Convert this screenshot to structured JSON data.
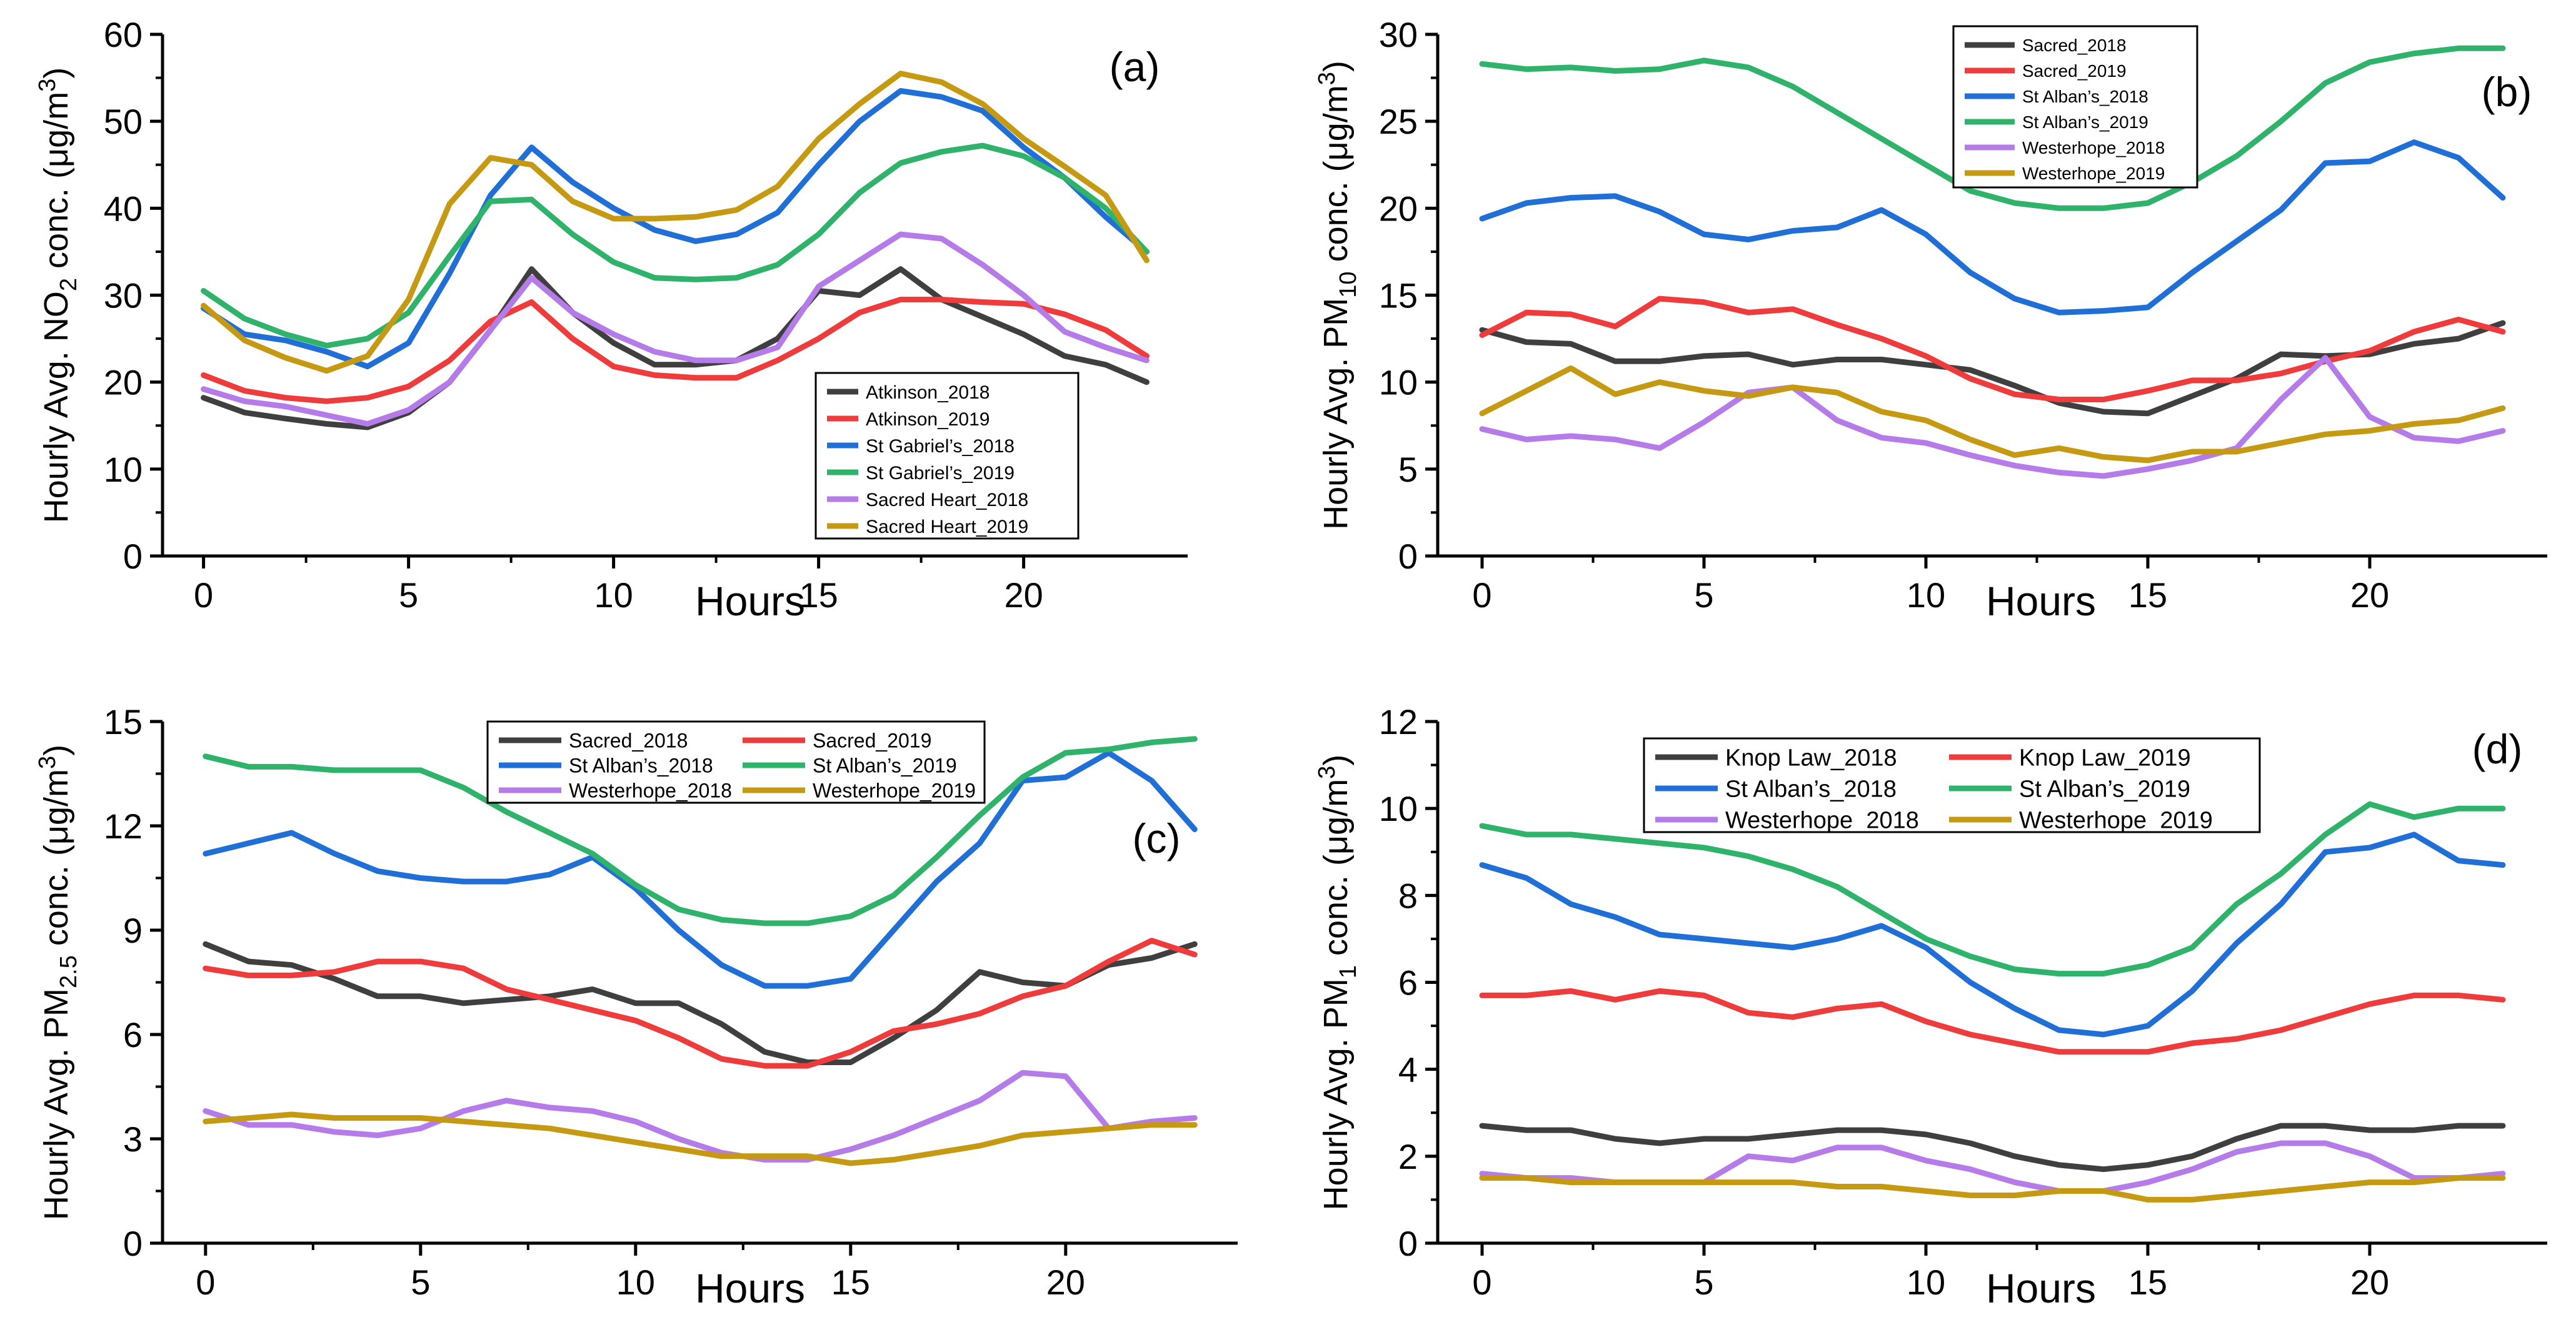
{
  "figure": {
    "x_title": "Hours"
  },
  "colors": {
    "axis": "#000000",
    "dark_gray": "#3f3f3f",
    "red": "#ee3b3b",
    "blue": "#1f6fd6",
    "green": "#2fb36a",
    "purple": "#b57be8",
    "gold": "#c59a12"
  },
  "chart_data": [
    {
      "panel": "(a)",
      "type": "line",
      "ylabel_pre": "Hourly Avg. NO",
      "ylabel_sub": "2",
      "ylabel_post": " conc. (μg/m",
      "ylabel_sup": "3",
      "ylabel_end": ")",
      "xlabel": "Hours",
      "xlim": [
        -1,
        24
      ],
      "ylim": [
        0,
        60
      ],
      "xticks": [
        0,
        5,
        10,
        15,
        20
      ],
      "yticks": [
        0,
        10,
        20,
        30,
        40,
        50,
        60
      ],
      "legend_position": "bottom-right",
      "x": [
        0,
        1,
        2,
        3,
        4,
        5,
        6,
        7,
        8,
        9,
        10,
        11,
        12,
        13,
        14,
        15,
        16,
        17,
        18,
        19,
        20,
        21,
        22,
        23
      ],
      "series": [
        {
          "name": "Atkinson_2018",
          "color": "dark_gray",
          "values": [
            18.2,
            16.5,
            15.8,
            15.2,
            14.8,
            16.5,
            20.0,
            26.0,
            33.0,
            28.0,
            24.5,
            22.0,
            22.0,
            22.5,
            25.0,
            30.5,
            30.0,
            33.0,
            29.5,
            27.5,
            25.5,
            23.0,
            22.0,
            20.0
          ]
        },
        {
          "name": "Atkinson_2019",
          "color": "red",
          "values": [
            20.8,
            19.0,
            18.2,
            17.8,
            18.2,
            19.5,
            22.5,
            27.0,
            29.2,
            25.0,
            21.8,
            20.8,
            20.5,
            20.5,
            22.5,
            25.0,
            28.0,
            29.5,
            29.5,
            29.2,
            29.0,
            27.8,
            26.0,
            23.0
          ]
        },
        {
          "name": "St Gabriel’s_2018",
          "color": "blue",
          "values": [
            28.5,
            25.5,
            24.8,
            23.5,
            21.8,
            24.5,
            32.5,
            41.5,
            47.0,
            43.0,
            40.0,
            37.5,
            36.2,
            37.0,
            39.5,
            45.0,
            50.0,
            53.5,
            52.8,
            51.2,
            47.0,
            43.5,
            39.0,
            35.0
          ]
        },
        {
          "name": "St Gabriel’s_2019",
          "color": "green",
          "values": [
            30.5,
            27.3,
            25.5,
            24.2,
            25.0,
            28.0,
            34.5,
            40.8,
            41.0,
            37.0,
            33.8,
            32.0,
            31.8,
            32.0,
            33.5,
            37.0,
            41.8,
            45.2,
            46.5,
            47.2,
            46.0,
            43.5,
            40.0,
            35.0
          ]
        },
        {
          "name": "Sacred Heart_2018",
          "color": "purple",
          "values": [
            19.2,
            17.8,
            17.2,
            16.2,
            15.2,
            16.8,
            20.0,
            26.0,
            32.0,
            28.0,
            25.5,
            23.5,
            22.5,
            22.5,
            24.0,
            31.0,
            34.0,
            37.0,
            36.5,
            33.5,
            30.0,
            25.8,
            24.0,
            22.5
          ]
        },
        {
          "name": "Sacred Heart_2019",
          "color": "gold",
          "values": [
            28.8,
            24.8,
            22.8,
            21.3,
            23.0,
            29.5,
            40.5,
            45.8,
            45.0,
            40.8,
            38.8,
            38.8,
            39.0,
            39.8,
            42.5,
            48.0,
            52.0,
            55.5,
            54.5,
            52.0,
            48.0,
            44.8,
            41.5,
            34.0
          ]
        }
      ]
    },
    {
      "panel": "(b)",
      "type": "line",
      "ylabel_pre": "Hourly Avg. PM",
      "ylabel_sub": "10",
      "ylabel_post": " conc. (μg/m",
      "ylabel_sup": "3",
      "ylabel_end": ")",
      "xlabel": "Hours",
      "xlim": [
        -1,
        24
      ],
      "ylim": [
        0,
        30
      ],
      "xticks": [
        0,
        5,
        10,
        15,
        20
      ],
      "yticks": [
        0,
        5,
        10,
        15,
        20,
        25,
        30
      ],
      "legend_position": "top-center",
      "x": [
        0,
        1,
        2,
        3,
        4,
        5,
        6,
        7,
        8,
        9,
        10,
        11,
        12,
        13,
        14,
        15,
        16,
        17,
        18,
        19,
        20,
        21,
        22,
        23
      ],
      "series": [
        {
          "name": "Sacred_2018",
          "color": "dark_gray",
          "values": [
            13.0,
            12.3,
            12.2,
            11.2,
            11.2,
            11.5,
            11.6,
            11.0,
            11.3,
            11.3,
            11.0,
            10.7,
            9.8,
            8.8,
            8.3,
            8.2,
            9.2,
            10.2,
            11.6,
            11.5,
            11.6,
            12.2,
            12.5,
            13.4
          ]
        },
        {
          "name": "Sacred_2019",
          "color": "red",
          "values": [
            12.7,
            14.0,
            13.9,
            13.2,
            14.8,
            14.6,
            14.0,
            14.2,
            13.3,
            12.5,
            11.5,
            10.2,
            9.3,
            9.0,
            9.0,
            9.5,
            10.1,
            10.1,
            10.5,
            11.2,
            11.8,
            12.9,
            13.6,
            12.9
          ]
        },
        {
          "name": "St Alban’s_2018",
          "color": "blue",
          "values": [
            19.4,
            20.3,
            20.6,
            20.7,
            19.8,
            18.5,
            18.2,
            18.7,
            18.9,
            19.9,
            18.5,
            16.3,
            14.8,
            14.0,
            14.1,
            14.3,
            16.3,
            18.1,
            19.9,
            22.6,
            22.7,
            23.8,
            22.9,
            20.6
          ]
        },
        {
          "name": "St Alban’s_2019",
          "color": "green",
          "values": [
            28.3,
            28.0,
            28.1,
            27.9,
            28.0,
            28.5,
            28.1,
            27.0,
            25.5,
            24.0,
            22.5,
            21.0,
            20.3,
            20.0,
            20.0,
            20.3,
            21.5,
            23.0,
            25.0,
            27.2,
            28.4,
            28.9,
            29.2,
            29.2
          ]
        },
        {
          "name": "Westerhope_2018",
          "color": "purple",
          "values": [
            7.3,
            6.7,
            6.9,
            6.7,
            6.2,
            7.7,
            9.4,
            9.7,
            7.8,
            6.8,
            6.5,
            5.8,
            5.2,
            4.8,
            4.6,
            5.0,
            5.5,
            6.2,
            9.0,
            11.4,
            8.0,
            6.8,
            6.6,
            7.2
          ]
        },
        {
          "name": "Westerhope_2019",
          "color": "gold",
          "values": [
            8.2,
            9.5,
            10.8,
            9.3,
            10.0,
            9.5,
            9.2,
            9.7,
            9.4,
            8.3,
            7.8,
            6.7,
            5.8,
            6.2,
            5.7,
            5.5,
            6.0,
            6.0,
            6.5,
            7.0,
            7.2,
            7.6,
            7.8,
            8.5
          ]
        }
      ]
    },
    {
      "panel": "(c)",
      "type": "line",
      "ylabel_pre": "Hourly Avg. PM",
      "ylabel_sub": "2.5",
      "ylabel_post": " conc. (μg/m",
      "ylabel_sup": "3",
      "ylabel_end": ")",
      "xlabel": "Hours",
      "xlim": [
        -1,
        24
      ],
      "ylim": [
        0,
        15
      ],
      "xticks": [
        0,
        5,
        10,
        15,
        20
      ],
      "yticks": [
        0,
        3,
        6,
        9,
        12,
        15
      ],
      "legend_position": "top-center",
      "x": [
        0,
        1,
        2,
        3,
        4,
        5,
        6,
        7,
        8,
        9,
        10,
        11,
        12,
        13,
        14,
        15,
        16,
        17,
        18,
        19,
        20,
        21,
        22,
        23
      ],
      "series": [
        {
          "name": "Sacred_2018",
          "color": "dark_gray",
          "values": [
            8.6,
            8.1,
            8.0,
            7.6,
            7.1,
            7.1,
            6.9,
            7.0,
            7.1,
            7.3,
            6.9,
            6.9,
            6.3,
            5.5,
            5.2,
            5.2,
            5.9,
            6.7,
            7.8,
            7.5,
            7.4,
            8.0,
            8.2,
            8.6
          ]
        },
        {
          "name": "Sacred_2019",
          "color": "red",
          "values": [
            7.9,
            7.7,
            7.7,
            7.8,
            8.1,
            8.1,
            7.9,
            7.3,
            7.0,
            6.7,
            6.4,
            5.9,
            5.3,
            5.1,
            5.1,
            5.5,
            6.1,
            6.3,
            6.6,
            7.1,
            7.4,
            8.1,
            8.7,
            8.3
          ]
        },
        {
          "name": "St Alban’s_2018",
          "color": "blue",
          "values": [
            11.2,
            11.5,
            11.8,
            11.2,
            10.7,
            10.5,
            10.4,
            10.4,
            10.6,
            11.1,
            10.2,
            9.0,
            8.0,
            7.4,
            7.4,
            7.6,
            9.0,
            10.4,
            11.5,
            13.3,
            13.4,
            14.1,
            13.3,
            11.9
          ]
        },
        {
          "name": "St Alban’s_2019",
          "color": "green",
          "values": [
            14.0,
            13.7,
            13.7,
            13.6,
            13.6,
            13.6,
            13.1,
            12.4,
            11.8,
            11.2,
            10.3,
            9.6,
            9.3,
            9.2,
            9.2,
            9.4,
            10.0,
            11.1,
            12.3,
            13.4,
            14.1,
            14.2,
            14.4,
            14.5
          ]
        },
        {
          "name": "Westerhope_2018",
          "color": "purple",
          "values": [
            3.8,
            3.4,
            3.4,
            3.2,
            3.1,
            3.3,
            3.8,
            4.1,
            3.9,
            3.8,
            3.5,
            3.0,
            2.6,
            2.4,
            2.4,
            2.7,
            3.1,
            3.6,
            4.1,
            4.9,
            4.8,
            3.3,
            3.5,
            3.6
          ]
        },
        {
          "name": "Westerhope_2019",
          "color": "gold",
          "values": [
            3.5,
            3.6,
            3.7,
            3.6,
            3.6,
            3.6,
            3.5,
            3.4,
            3.3,
            3.1,
            2.9,
            2.7,
            2.5,
            2.5,
            2.5,
            2.3,
            2.4,
            2.6,
            2.8,
            3.1,
            3.2,
            3.3,
            3.4,
            3.4
          ]
        }
      ]
    },
    {
      "panel": "(d)",
      "type": "line",
      "ylabel_pre": "Hourly Avg. PM",
      "ylabel_sub": "1",
      "ylabel_post": " conc. (μg/m",
      "ylabel_sup": "3",
      "ylabel_end": ")",
      "xlabel": "Hours",
      "xlim": [
        -1,
        24
      ],
      "ylim": [
        0,
        12
      ],
      "xticks": [
        0,
        5,
        10,
        15,
        20
      ],
      "yticks": [
        0,
        2,
        4,
        6,
        8,
        10,
        12
      ],
      "legend_position": "top-center",
      "x": [
        0,
        1,
        2,
        3,
        4,
        5,
        6,
        7,
        8,
        9,
        10,
        11,
        12,
        13,
        14,
        15,
        16,
        17,
        18,
        19,
        20,
        21,
        22,
        23
      ],
      "series": [
        {
          "name": "Knop Law_2018",
          "color": "dark_gray",
          "values": [
            2.7,
            2.6,
            2.6,
            2.4,
            2.3,
            2.4,
            2.4,
            2.5,
            2.6,
            2.6,
            2.5,
            2.3,
            2.0,
            1.8,
            1.7,
            1.8,
            2.0,
            2.4,
            2.7,
            2.7,
            2.6,
            2.6,
            2.7,
            2.7
          ]
        },
        {
          "name": "Knop Law_2019",
          "color": "red",
          "values": [
            5.7,
            5.7,
            5.8,
            5.6,
            5.8,
            5.7,
            5.3,
            5.2,
            5.4,
            5.5,
            5.1,
            4.8,
            4.6,
            4.4,
            4.4,
            4.4,
            4.6,
            4.7,
            4.9,
            5.2,
            5.5,
            5.7,
            5.7,
            5.6
          ]
        },
        {
          "name": "St Alban’s_2018",
          "color": "blue",
          "values": [
            8.7,
            8.4,
            7.8,
            7.5,
            7.1,
            7.0,
            6.9,
            6.8,
            7.0,
            7.3,
            6.8,
            6.0,
            5.4,
            4.9,
            4.8,
            5.0,
            5.8,
            6.9,
            7.8,
            9.0,
            9.1,
            9.4,
            8.8,
            8.7
          ]
        },
        {
          "name": "St Alban’s_2019",
          "color": "green",
          "values": [
            9.6,
            9.4,
            9.4,
            9.3,
            9.2,
            9.1,
            8.9,
            8.6,
            8.2,
            7.6,
            7.0,
            6.6,
            6.3,
            6.2,
            6.2,
            6.4,
            6.8,
            7.8,
            8.5,
            9.4,
            10.1,
            9.8,
            10.0,
            10.0
          ]
        },
        {
          "name": "Westerhope_2018",
          "color": "purple",
          "values": [
            1.6,
            1.5,
            1.5,
            1.4,
            1.4,
            1.4,
            2.0,
            1.9,
            2.2,
            2.2,
            1.9,
            1.7,
            1.4,
            1.2,
            1.2,
            1.4,
            1.7,
            2.1,
            2.3,
            2.3,
            2.0,
            1.5,
            1.5,
            1.6
          ]
        },
        {
          "name": "Westerhope_2019",
          "color": "gold",
          "values": [
            1.5,
            1.5,
            1.4,
            1.4,
            1.4,
            1.4,
            1.4,
            1.4,
            1.3,
            1.3,
            1.2,
            1.1,
            1.1,
            1.2,
            1.2,
            1.0,
            1.0,
            1.1,
            1.2,
            1.3,
            1.4,
            1.4,
            1.5,
            1.5
          ]
        }
      ]
    }
  ]
}
